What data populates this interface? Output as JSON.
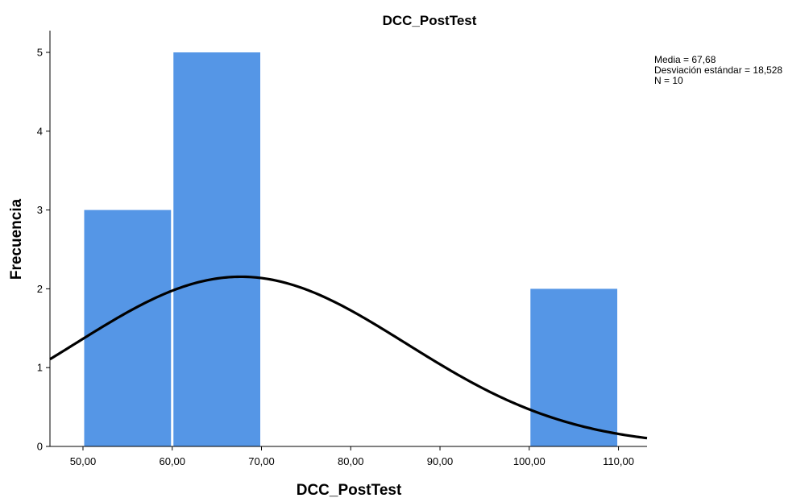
{
  "chart_data": {
    "type": "bar",
    "title": "DCC_PostTest",
    "xlabel": "DCC_PostTest",
    "ylabel": "Frecuencia",
    "bins": [
      {
        "from": 50,
        "to": 60,
        "count": 3
      },
      {
        "from": 60,
        "to": 70,
        "count": 5
      },
      {
        "from": 70,
        "to": 80,
        "count": 0
      },
      {
        "from": 80,
        "to": 90,
        "count": 0
      },
      {
        "from": 90,
        "to": 100,
        "count": 0
      },
      {
        "from": 100,
        "to": 110,
        "count": 2
      }
    ],
    "xlim": [
      46.3,
      113.2
    ],
    "ylim": [
      0,
      5.3
    ],
    "x_ticks": [
      50,
      60,
      70,
      80,
      90,
      100,
      110
    ],
    "x_tick_labels": [
      "50,00",
      "60,00",
      "70,00",
      "80,00",
      "90,00",
      "100,00",
      "110,00"
    ],
    "y_ticks": [
      0,
      1,
      2,
      3,
      4,
      5
    ],
    "y_tick_labels": [
      "0",
      "1",
      "2",
      "3",
      "4",
      "5"
    ],
    "normal_curve": {
      "mean": 67.68,
      "sd": 18.528,
      "n": 10,
      "bin_width": 10
    },
    "bar_color": "#5596e6",
    "curve_color": "#000000",
    "grid": false,
    "legend": "none",
    "stats": {
      "position": "top-right",
      "lines": [
        "Media = 67,68",
        "Desviación estándar = 18,528",
        "N = 10"
      ]
    }
  }
}
